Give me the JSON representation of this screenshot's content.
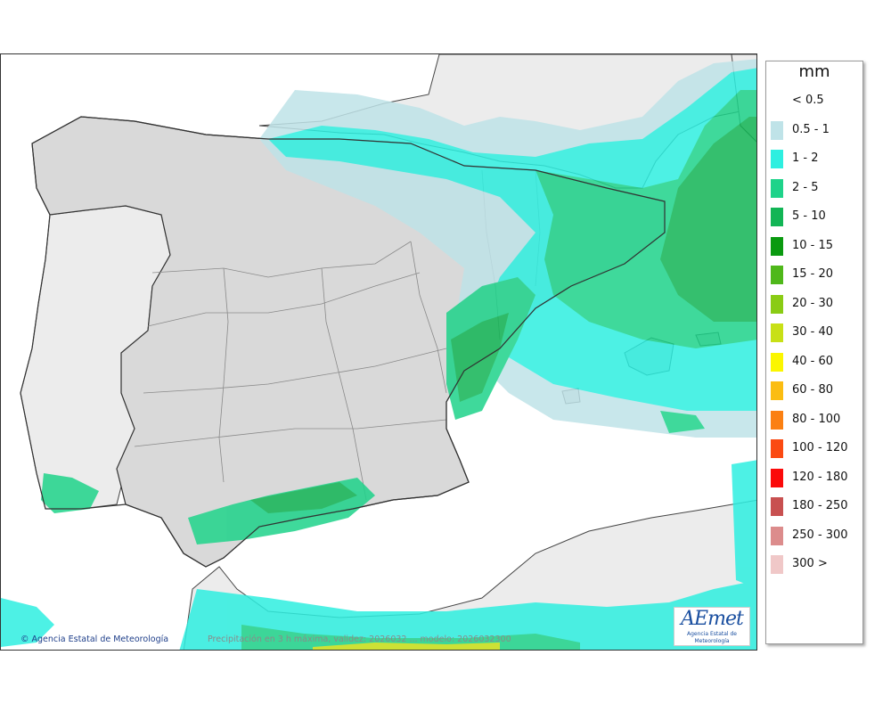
{
  "map": {
    "credit": "Agencia Estatal de Meteorología",
    "footer": "Precipitación en 3 h máxima, validez: 2026032 ... modelo: 2026032300",
    "logo_text": "AEmet",
    "logo_sub": "Agencia Estatal de Meteorología",
    "land_color": "#d9d9d9",
    "africa_color": "#ececec",
    "sea_color": "#ffffff"
  },
  "legend": {
    "unit": "mm",
    "items": [
      {
        "label": "< 0.5",
        "color": ""
      },
      {
        "label": "0.5 - 1",
        "color": "#bfe3e8"
      },
      {
        "label": "1 - 2",
        "color": "#2eefe0"
      },
      {
        "label": "2 - 5",
        "color": "#1ed38a"
      },
      {
        "label": "5 - 10",
        "color": "#12b555"
      },
      {
        "label": "10 - 15",
        "color": "#0a9a10"
      },
      {
        "label": "15 - 20",
        "color": "#4fb81a"
      },
      {
        "label": "20 - 30",
        "color": "#8acc14"
      },
      {
        "label": "30 - 40",
        "color": "#c8e016"
      },
      {
        "label": "40 - 60",
        "color": "#fbf600"
      },
      {
        "label": "60 - 80",
        "color": "#fbbd12"
      },
      {
        "label": "80 - 100",
        "color": "#fb8012"
      },
      {
        "label": "100 - 120",
        "color": "#fb4a12"
      },
      {
        "label": "120 - 180",
        "color": "#fb0a0a"
      },
      {
        "label": "180 - 250",
        "color": "#c85050"
      },
      {
        "label": "250 - 300",
        "color": "#dc8c8c"
      },
      {
        "label": "300 >",
        "color": "#f0c8c8"
      }
    ]
  }
}
